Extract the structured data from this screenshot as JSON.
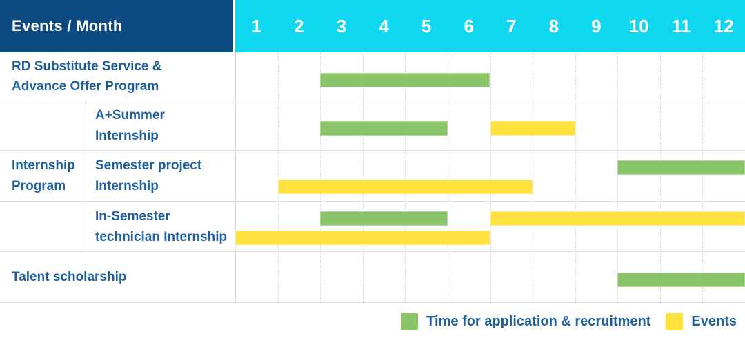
{
  "header": {
    "title": "Events / Month",
    "months": [
      "1",
      "2",
      "3",
      "4",
      "5",
      "6",
      "7",
      "8",
      "9",
      "10",
      "11",
      "12"
    ]
  },
  "groups": [
    {
      "id": "internship-program",
      "label_lines": [
        "Internship",
        "Program"
      ]
    }
  ],
  "rows": [
    {
      "id": "rd-substitute",
      "label": "RD Substitute Service & Advance Offer Program",
      "label_lines": [
        "RD Substitute Service &",
        "Advance Offer Program"
      ],
      "bars": [
        {
          "color_key": "green",
          "start": 3,
          "end": 6,
          "slot": "mid"
        }
      ]
    },
    {
      "id": "a-plus-summer",
      "group": "internship-program",
      "label": "A+Summer Internship",
      "label_lines": [
        "A+Summer",
        "Internship"
      ],
      "bars": [
        {
          "color_key": "green",
          "start": 3,
          "end": 5,
          "slot": "mid"
        },
        {
          "color_key": "yellow",
          "start": 7,
          "end": 8,
          "slot": "mid"
        }
      ]
    },
    {
      "id": "semester-project",
      "group": "internship-program",
      "label": "Semester project Internship",
      "label_lines": [
        "Semester project",
        "Internship"
      ],
      "bars": [
        {
          "color_key": "green",
          "start": 10,
          "end": 12,
          "slot": "top"
        },
        {
          "color_key": "yellow",
          "start": 2,
          "end": 7,
          "slot": "bottom"
        }
      ]
    },
    {
      "id": "in-semester-technician",
      "group": "internship-program",
      "label": "In-Semester technician Internship",
      "label_lines": [
        "In-Semester",
        "technician Internship"
      ],
      "bars": [
        {
          "color_key": "green",
          "start": 3,
          "end": 5,
          "slot": "top"
        },
        {
          "color_key": "yellow",
          "start": 7,
          "end": 12,
          "slot": "top"
        },
        {
          "color_key": "yellow",
          "start": 1,
          "end": 6,
          "slot": "bottom"
        }
      ]
    },
    {
      "id": "talent-scholarship",
      "label": "Talent scholarship",
      "label_lines": [
        "Talent scholarship"
      ],
      "bars": [
        {
          "color_key": "green",
          "start": 10,
          "end": 12,
          "slot": "mid"
        }
      ]
    }
  ],
  "legend": [
    {
      "color_key": "green",
      "label": "Time for application & recruitment"
    },
    {
      "color_key": "yellow",
      "label": "Events"
    }
  ],
  "colors": {
    "header_bg": "#0d4a81",
    "months_bg": "#10d7f0",
    "label_text": "#1d5f9f",
    "green": "#8bc56a",
    "yellow": "#ffe23f",
    "grid": "#dcdcdc"
  },
  "chart_data": {
    "type": "gantt",
    "title": "Events / Month",
    "x_categories": [
      "1",
      "2",
      "3",
      "4",
      "5",
      "6",
      "7",
      "8",
      "9",
      "10",
      "11",
      "12"
    ],
    "x_axis_label": "Month",
    "legend_position": "bottom-right",
    "grid": true,
    "series_legend": [
      {
        "name": "Time for application & recruitment",
        "color": "#8bc56a"
      },
      {
        "name": "Events",
        "color": "#ffe23f"
      }
    ],
    "rows": [
      {
        "group": null,
        "label": "RD Substitute Service & Advance Offer Program",
        "bars": [
          {
            "series": "Time for application & recruitment",
            "start_month": 3,
            "end_month": 6
          }
        ]
      },
      {
        "group": "Internship Program",
        "label": "A+Summer Internship",
        "bars": [
          {
            "series": "Time for application & recruitment",
            "start_month": 3,
            "end_month": 5
          },
          {
            "series": "Events",
            "start_month": 7,
            "end_month": 8
          }
        ]
      },
      {
        "group": "Internship Program",
        "label": "Semester project Internship",
        "bars": [
          {
            "series": "Time for application & recruitment",
            "start_month": 10,
            "end_month": 12
          },
          {
            "series": "Events",
            "start_month": 2,
            "end_month": 7
          }
        ]
      },
      {
        "group": "Internship Program",
        "label": "In-Semester technician Internship",
        "bars": [
          {
            "series": "Time for application & recruitment",
            "start_month": 3,
            "end_month": 5
          },
          {
            "series": "Events",
            "start_month": 7,
            "end_month": 12
          },
          {
            "series": "Events",
            "start_month": 1,
            "end_month": 6
          }
        ]
      },
      {
        "group": null,
        "label": "Talent scholarship",
        "bars": [
          {
            "series": "Time for application & recruitment",
            "start_month": 10,
            "end_month": 12
          }
        ]
      }
    ]
  }
}
